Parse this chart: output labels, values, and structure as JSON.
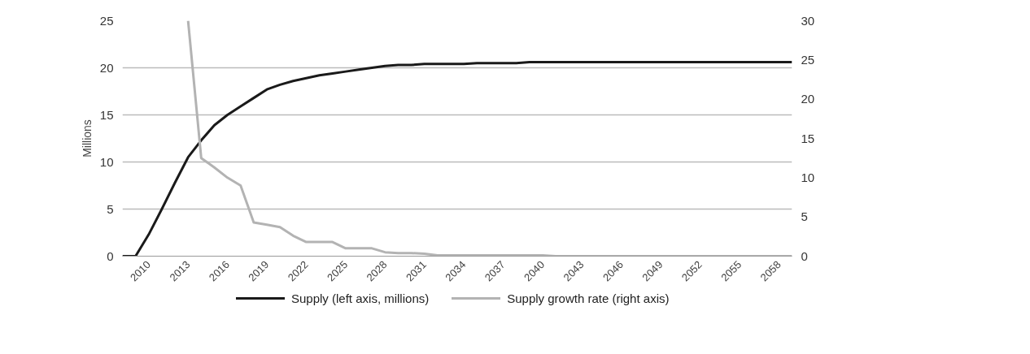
{
  "chart_data": {
    "type": "line",
    "ylabel": "Millions",
    "categories": [
      null,
      null,
      "2010",
      null,
      null,
      "2013",
      null,
      null,
      "2016",
      null,
      null,
      "2019",
      null,
      null,
      "2022",
      null,
      null,
      "2025",
      null,
      null,
      "2028",
      null,
      null,
      "2031",
      null,
      null,
      "2034",
      null,
      null,
      "2037",
      null,
      null,
      "2040",
      null,
      null,
      "2043",
      null,
      null,
      "2046",
      null,
      null,
      "2049",
      null,
      null,
      "2052",
      null,
      null,
      "2055",
      null,
      null,
      "2058",
      null
    ],
    "series": [
      {
        "name": "Supply (left axis, millions)",
        "color": "#1a1a1a",
        "values": [
          0,
          0,
          2.3,
          5.0,
          7.8,
          10.5,
          12.3,
          13.9,
          15.0,
          15.9,
          16.8,
          17.7,
          18.2,
          18.6,
          18.9,
          19.2,
          19.4,
          19.6,
          19.8,
          20.0,
          20.2,
          20.3,
          20.3,
          20.4,
          20.4,
          20.4,
          20.4,
          20.5,
          20.5,
          20.5,
          20.5,
          20.6,
          20.6,
          20.6,
          20.6,
          20.6,
          20.6,
          20.6,
          20.6,
          20.6,
          20.6,
          20.6,
          20.6,
          20.6,
          20.6,
          20.6,
          20.6,
          20.6,
          20.6,
          20.6,
          20.6,
          20.6
        ]
      },
      {
        "name": "Supply growth rate (right axis)",
        "color": "#b3b3b3",
        "axis": "y2",
        "values": [
          null,
          null,
          null,
          null,
          null,
          30,
          12.5,
          11.3,
          10.0,
          9.0,
          4.3,
          4.0,
          3.7,
          2.6,
          1.8,
          1.8,
          1.8,
          1.0,
          1.0,
          1.0,
          0.5,
          0.4,
          0.4,
          0.3,
          0.1,
          0.1,
          0.1,
          0.1,
          0.1,
          0.1,
          0.1,
          0.1,
          0.1,
          0,
          0,
          0,
          0,
          0,
          0,
          0,
          0,
          0,
          0,
          0,
          0,
          0,
          0,
          0,
          0,
          0,
          0,
          0
        ]
      }
    ],
    "ylim": [
      0,
      25
    ],
    "yticks": [
      0,
      5,
      10,
      15,
      20,
      25
    ],
    "y2lim": [
      0,
      30
    ],
    "y2ticks": [
      0,
      5,
      10,
      15,
      20,
      25,
      30
    ],
    "grid": "y",
    "legend": "bottom"
  }
}
